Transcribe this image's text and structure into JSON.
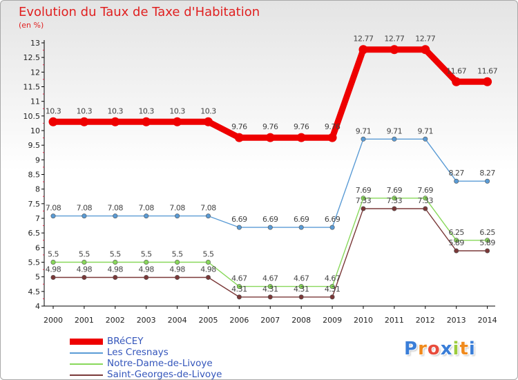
{
  "chart_data": {
    "type": "line",
    "title": "Evolution du Taux de Taxe d'Habitation",
    "unit_label": "(en %)",
    "x": [
      "2000",
      "2001",
      "2002",
      "2003",
      "2004",
      "2005",
      "2006",
      "2007",
      "2008",
      "2009",
      "2010",
      "2011",
      "2012",
      "2013",
      "2014"
    ],
    "y_ticks": [
      "4",
      "4.5",
      "5",
      "5.5",
      "6",
      "6.5",
      "7",
      "7.5",
      "8",
      "8.5",
      "9",
      "9.5",
      "10",
      "10.5",
      "11",
      "11.5",
      "12",
      "12.5",
      "13"
    ],
    "ylim": [
      4,
      13
    ],
    "grid": false,
    "legend_position": "bottom-left",
    "series": [
      {
        "name": "BRéCEY",
        "color": "#ee0000",
        "values": [
          10.3,
          10.3,
          10.3,
          10.3,
          10.3,
          10.3,
          9.76,
          9.76,
          9.76,
          9.76,
          12.77,
          12.77,
          12.77,
          11.67,
          11.67
        ],
        "labels": [
          "10.3",
          "10.3",
          "10.3",
          "10.3",
          "10.3",
          "10.3",
          "9.76",
          "9.76",
          "9.76",
          "9.76",
          "12.77",
          "12.77",
          "12.77",
          "11.67",
          "11.67"
        ]
      },
      {
        "name": "Les Cresnays",
        "color": "#5a9bd5",
        "values": [
          7.08,
          7.08,
          7.08,
          7.08,
          7.08,
          7.08,
          6.69,
          6.69,
          6.69,
          6.69,
          9.71,
          9.71,
          9.71,
          8.27,
          8.27
        ],
        "labels": [
          "7.08",
          "7.08",
          "7.08",
          "7.08",
          "7.08",
          "7.08",
          "6.69",
          "6.69",
          "6.69",
          "6.69",
          "9.71",
          "9.71",
          "9.71",
          "8.27",
          "8.27"
        ]
      },
      {
        "name": "Notre-Dame-de-Livoye",
        "color": "#88d85a",
        "values": [
          5.5,
          5.5,
          5.5,
          5.5,
          5.5,
          5.5,
          4.67,
          4.67,
          4.67,
          4.67,
          7.69,
          7.69,
          7.69,
          6.25,
          6.25
        ],
        "labels": [
          "5.5",
          "5.5",
          "5.5",
          "5.5",
          "5.5",
          "5.5",
          "4.67",
          "4.67",
          "4.67",
          "4.67",
          "7.69",
          "7.69",
          "7.69",
          "6.25",
          "6.25"
        ]
      },
      {
        "name": "Saint-Georges-de-Livoye",
        "color": "#7a3838",
        "values": [
          4.98,
          4.98,
          4.98,
          4.98,
          4.98,
          4.98,
          4.31,
          4.31,
          4.31,
          4.31,
          7.33,
          7.33,
          7.33,
          5.89,
          5.89
        ],
        "labels": [
          "4.98",
          "4.98",
          "4.98",
          "4.98",
          "4.98",
          "4.98",
          "4.31",
          "4.31",
          "4.31",
          "4.31",
          "7.33",
          "7.33",
          "7.33",
          "5.89",
          "5.89"
        ]
      }
    ]
  },
  "logo": {
    "text": "Proxiti",
    "letters": [
      "P",
      "r",
      "o",
      "x",
      "i",
      "t",
      "i"
    ],
    "letter_colors": [
      "#3a7ed8",
      "#f08a1c",
      "#e84c3c",
      "#3a7ed8",
      "#9ccc3c",
      "#f08a1c",
      "#3a7ed8"
    ]
  }
}
